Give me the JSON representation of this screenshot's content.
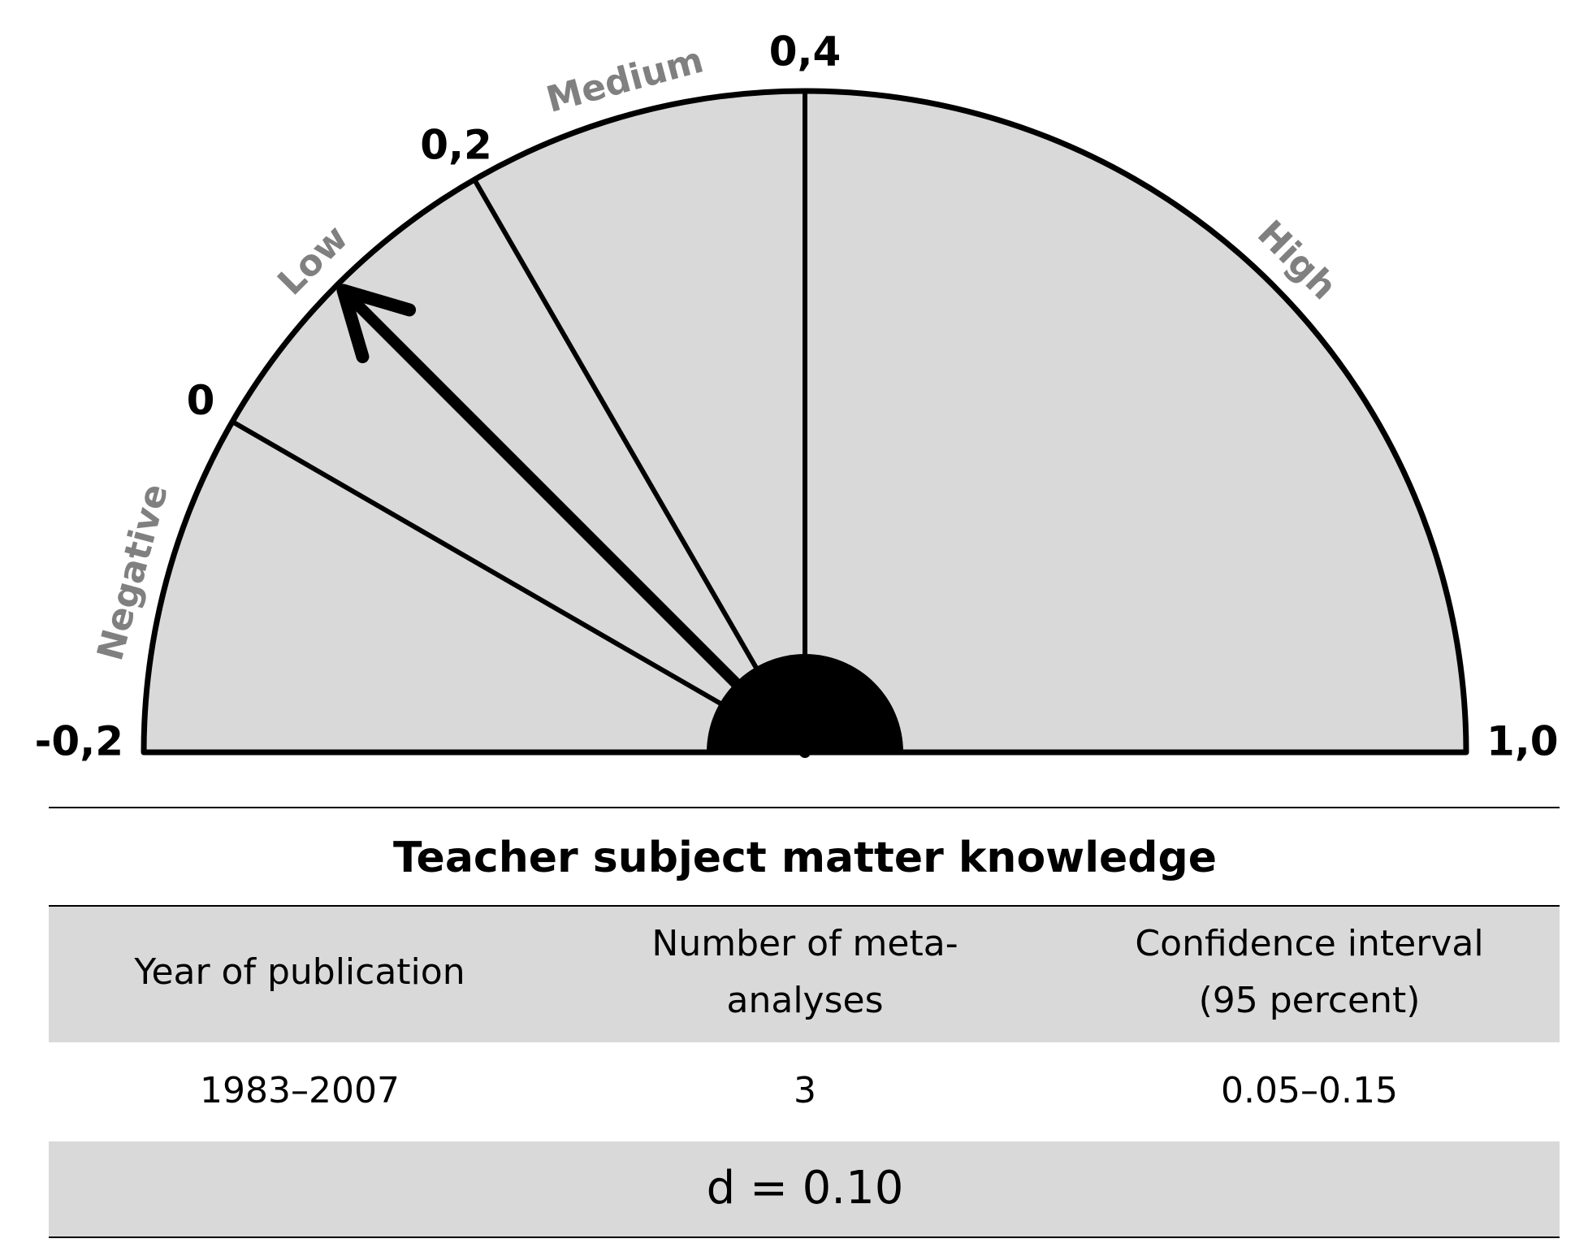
{
  "chart_data": {
    "type": "gauge",
    "xlim": [
      -0.2,
      1.0
    ],
    "xticks": [
      {
        "value": -0.2,
        "label": "-0,2"
      },
      {
        "value": 0,
        "label": "0"
      },
      {
        "value": 0.2,
        "label": "0,2"
      },
      {
        "value": 0.4,
        "label": "0,4"
      },
      {
        "value": 1.0,
        "label": "1,0"
      }
    ],
    "zones": [
      "Negative",
      "Low",
      "Medium",
      "High"
    ],
    "color": "#d9d9d9",
    "needle": {
      "value": 0.1,
      "label": "d = 0.10"
    }
  },
  "title": "Teacher subject matter knowledge",
  "table": {
    "header": [
      [
        "Year of publication"
      ],
      [
        "Number of meta-",
        "analyses"
      ],
      [
        "Confidence interval",
        "(95 percent)"
      ]
    ],
    "row": [
      "1983–2007",
      "3",
      "0.05–0.15"
    ]
  }
}
